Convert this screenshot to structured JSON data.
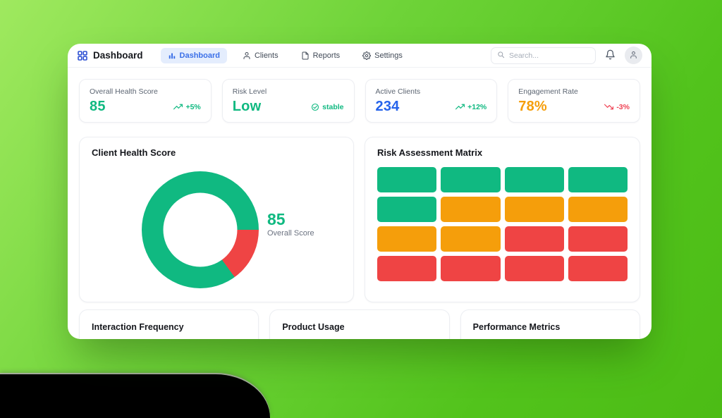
{
  "app": {
    "brand": "Dashboard",
    "nav": [
      {
        "label": "Dashboard",
        "icon": "bar-chart-icon",
        "active": true
      },
      {
        "label": "Clients",
        "icon": "user-icon",
        "active": false
      },
      {
        "label": "Reports",
        "icon": "file-icon",
        "active": false
      },
      {
        "label": "Settings",
        "icon": "gear-icon",
        "active": false
      }
    ],
    "search_placeholder": "Search...",
    "active_tab_colors": {
      "bg": "#e4edfd",
      "text": "#3b70e8"
    },
    "logo_color": "#2d50d3"
  },
  "stats": [
    {
      "label": "Overall Health Score",
      "value": "85",
      "value_color": "#10b981",
      "trend": "+5%",
      "trend_color": "#10b981",
      "trend_icon": "trending-up"
    },
    {
      "label": "Risk Level",
      "value": "Low",
      "value_color": "#10b981",
      "trend": "stable",
      "trend_color": "#10b981",
      "trend_icon": "check-circle"
    },
    {
      "label": "Active Clients",
      "value": "234",
      "value_color": "#2563eb",
      "trend": "+12%",
      "trend_color": "#10b981",
      "trend_icon": "trending-up"
    },
    {
      "label": "Engagement Rate",
      "value": "78%",
      "value_color": "#f59e0b",
      "trend": "-3%",
      "trend_color": "#ef4455",
      "trend_icon": "trending-down"
    }
  ],
  "chart_data": [
    {
      "type": "doughnut",
      "title": "Client Health Score",
      "series": [
        {
          "name": "Score",
          "value": 85,
          "color": "#10b981"
        },
        {
          "name": "Remainder",
          "value": 15,
          "color": "#ef4444"
        }
      ],
      "start_angle_deg": 90,
      "center_value": "85",
      "center_label": "Overall Score",
      "legend": "none"
    },
    {
      "type": "heatmap",
      "title": "Risk Assessment Matrix",
      "rows": 4,
      "cols": 4,
      "levels": {
        "low": "#10b981",
        "medium": "#f59e0b",
        "high": "#ef4444"
      },
      "cells": [
        [
          "low",
          "low",
          "low",
          "low"
        ],
        [
          "low",
          "medium",
          "medium",
          "medium"
        ],
        [
          "medium",
          "medium",
          "high",
          "high"
        ],
        [
          "high",
          "high",
          "high",
          "high"
        ]
      ]
    }
  ],
  "panels_below": [
    {
      "title": "Interaction Frequency"
    },
    {
      "title": "Product Usage"
    },
    {
      "title": "Performance Metrics"
    }
  ],
  "theme": {
    "page_gradient": [
      "#9fe95f",
      "#6ed338",
      "#52c31c",
      "#4cbc15"
    ],
    "card_border": "#eceef2"
  }
}
